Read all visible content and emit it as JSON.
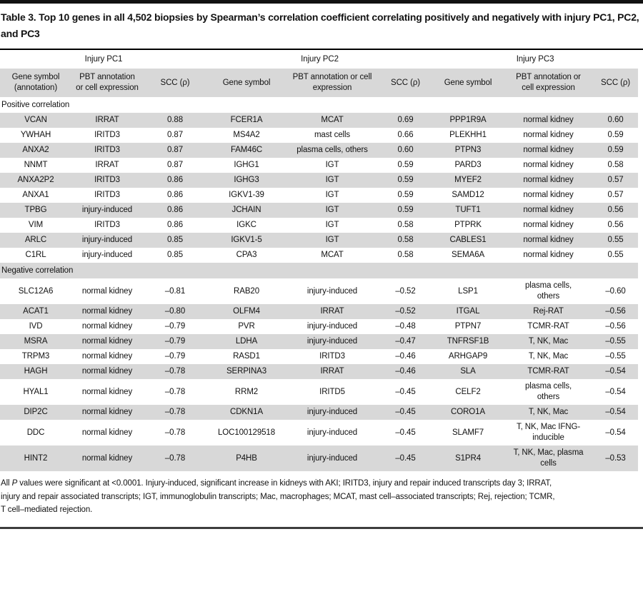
{
  "title": "Table 3. Top 10 genes in all 4,502 biopsies by Spearman’s correlation coefficient correlating positively and negatively with injury PC1, PC2, and PC3",
  "table": {
    "groups": [
      {
        "label": "Injury PC1"
      },
      {
        "label": "Injury PC2"
      },
      {
        "label": "Injury PC3"
      }
    ],
    "columns": [
      "Gene symbol\n(annotation)",
      "PBT annotation\nor cell expression",
      "SCC (ρ)",
      "Gene symbol",
      "PBT annotation or cell\nexpression",
      "SCC (ρ)",
      "Gene symbol",
      "PBT annotation or\ncell expression",
      "SCC (ρ)"
    ],
    "sections": [
      {
        "label": "Positive correlation",
        "rows": [
          [
            "VCAN",
            "IRRAT",
            "0.88",
            "FCER1A",
            "MCAT",
            "0.69",
            "PPP1R9A",
            "normal kidney",
            "0.60"
          ],
          [
            "YWHAH",
            "IRITD3",
            "0.87",
            "MS4A2",
            "mast cells",
            "0.66",
            "PLEKHH1",
            "normal kidney",
            "0.59"
          ],
          [
            "ANXA2",
            "IRITD3",
            "0.87",
            "FAM46C",
            "plasma cells, others",
            "0.60",
            "PTPN3",
            "normal kidney",
            "0.59"
          ],
          [
            "NNMT",
            "IRRAT",
            "0.87",
            "IGHG1",
            "IGT",
            "0.59",
            "PARD3",
            "normal kidney",
            "0.58"
          ],
          [
            "ANXA2P2",
            "IRITD3",
            "0.86",
            "IGHG3",
            "IGT",
            "0.59",
            "MYEF2",
            "normal kidney",
            "0.57"
          ],
          [
            "ANXA1",
            "IRITD3",
            "0.86",
            "IGKV1-39",
            "IGT",
            "0.59",
            "SAMD12",
            "normal kidney",
            "0.57"
          ],
          [
            "TPBG",
            "injury-induced",
            "0.86",
            "JCHAIN",
            "IGT",
            "0.59",
            "TUFT1",
            "normal kidney",
            "0.56"
          ],
          [
            "VIM",
            "IRITD3",
            "0.86",
            "IGKC",
            "IGT",
            "0.58",
            "PTPRK",
            "normal kidney",
            "0.56"
          ],
          [
            "ARLC",
            "injury-induced",
            "0.85",
            "IGKV1-5",
            "IGT",
            "0.58",
            "CABLES1",
            "normal kidney",
            "0.55"
          ],
          [
            "C1RL",
            "injury-induced",
            "0.85",
            "CPA3",
            "MCAT",
            "0.58",
            "SEMA6A",
            "normal kidney",
            "0.55"
          ]
        ]
      },
      {
        "label": "Negative correlation",
        "rows": [
          [
            "SLC12A6",
            "normal kidney",
            "–0.81",
            "RAB20",
            "injury-induced",
            "–0.52",
            "LSP1",
            "plasma cells,\nothers",
            "–0.60"
          ],
          [
            "ACAT1",
            "normal kidney",
            "–0.80",
            "OLFM4",
            "IRRAT",
            "–0.52",
            "ITGAL",
            "Rej-RAT",
            "–0.56"
          ],
          [
            "IVD",
            "normal kidney",
            "–0.79",
            "PVR",
            "injury-induced",
            "–0.48",
            "PTPN7",
            "TCMR-RAT",
            "–0.56"
          ],
          [
            "MSRA",
            "normal kidney",
            "–0.79",
            "LDHA",
            "injury-induced",
            "–0.47",
            "TNFRSF1B",
            "T, NK, Mac",
            "–0.55"
          ],
          [
            "TRPM3",
            "normal kidney",
            "–0.79",
            "RASD1",
            "IRITD3",
            "–0.46",
            "ARHGAP9",
            "T, NK, Mac",
            "–0.55"
          ],
          [
            "HAGH",
            "normal kidney",
            "–0.78",
            "SERPINA3",
            "IRRAT",
            "–0.46",
            "SLA",
            "TCMR-RAT",
            "–0.54"
          ],
          [
            "HYAL1",
            "normal kidney",
            "–0.78",
            "RRM2",
            "IRITD5",
            "–0.45",
            "CELF2",
            "plasma cells,\nothers",
            "–0.54"
          ],
          [
            "DIP2C",
            "normal kidney",
            "–0.78",
            "CDKN1A",
            "injury-induced",
            "–0.45",
            "CORO1A",
            "T, NK, Mac",
            "–0.54"
          ],
          [
            "DDC",
            "normal kidney",
            "–0.78",
            "LOC100129518",
            "injury-induced",
            "–0.45",
            "SLAMF7",
            "T, NK, Mac IFNG-\ninducible",
            "–0.54"
          ],
          [
            "HINT2",
            "normal kidney",
            "–0.78",
            "P4HB",
            "injury-induced",
            "–0.45",
            "S1PR4",
            "T, NK, Mac, plasma\ncells",
            "–0.53"
          ]
        ]
      }
    ]
  },
  "footnote": {
    "pre": "All ",
    "p": "P",
    "post": " values were significant at <0.0001. Injury-induced, significant increase in kidneys with AKI; IRITD3, injury and repair induced transcripts day 3; IRRAT,\ninjury and repair associated transcripts; IGT, immunoglobulin transcripts; Mac, macrophages; MCAT, mast cell–associated transcripts; Rej, rejection; TCMR,\nT cell–mediated rejection."
  },
  "colors": {
    "row_shade": "#d8d8d8",
    "top_bar": "#111111",
    "table_rule": "#000000",
    "bottom_rule": "#3d3d3d"
  }
}
